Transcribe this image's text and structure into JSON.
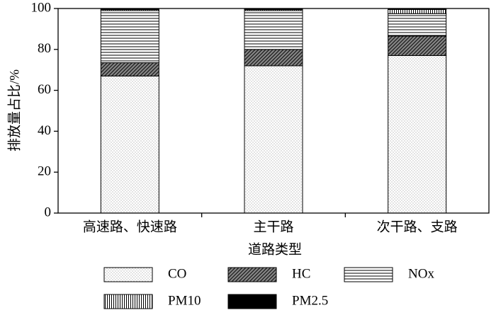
{
  "chart_data": {
    "type": "stacked_bar",
    "ylabel": "排放量占比/%",
    "xlabel": "道路类型",
    "categories": [
      "高速路、快速路",
      "主干路",
      "次干路、支路"
    ],
    "ylim": [
      0,
      100
    ],
    "yticks": [
      0,
      20,
      40,
      60,
      80,
      100
    ],
    "series": [
      {
        "name": "CO",
        "color": "#ffffff",
        "pattern": "dots",
        "values": [
          67,
          72,
          77
        ]
      },
      {
        "name": "HC",
        "color": "#ffffff",
        "pattern": "diagonal",
        "values": [
          6.5,
          8,
          9.5
        ]
      },
      {
        "name": "NOx",
        "color": "#ffffff",
        "pattern": "horizontal",
        "values": [
          25.5,
          19,
          11
        ]
      },
      {
        "name": "PM10",
        "color": "#ffffff",
        "pattern": "vertical",
        "values": [
          0.5,
          0.5,
          2
        ]
      },
      {
        "name": "PM2.5",
        "color": "#000000",
        "pattern": "solid",
        "values": [
          0.5,
          0.5,
          0.5
        ]
      }
    ]
  }
}
